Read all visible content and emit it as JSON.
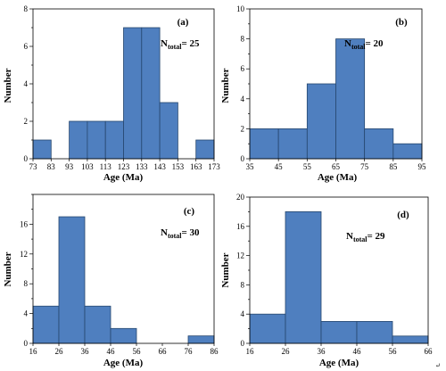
{
  "chart_data": [
    {
      "type": "bar",
      "panel_label": "(a)",
      "annotation": {
        "prefix": "N",
        "subscript": "total",
        "suffix": "= 25"
      },
      "xlabel": "Age (Ma)",
      "ylabel": "Number",
      "x_ticks": [
        73,
        83,
        93,
        103,
        113,
        123,
        133,
        143,
        153,
        163,
        173
      ],
      "bins": [
        {
          "from": 73,
          "to": 83,
          "value": 1
        },
        {
          "from": 83,
          "to": 93,
          "value": 0
        },
        {
          "from": 93,
          "to": 103,
          "value": 2
        },
        {
          "from": 103,
          "to": 113,
          "value": 2
        },
        {
          "from": 113,
          "to": 123,
          "value": 2
        },
        {
          "from": 123,
          "to": 133,
          "value": 7
        },
        {
          "from": 133,
          "to": 143,
          "value": 7
        },
        {
          "from": 143,
          "to": 153,
          "value": 3
        },
        {
          "from": 153,
          "to": 163,
          "value": 0
        },
        {
          "from": 163,
          "to": 173,
          "value": 1
        }
      ],
      "xlim": [
        73,
        173
      ],
      "ylim": [
        0,
        8
      ],
      "y_ticks": [
        0,
        2,
        4,
        6,
        8
      ],
      "y_minor_step": 1,
      "grid": false
    },
    {
      "type": "bar",
      "panel_label": "(b)",
      "annotation": {
        "prefix": "N",
        "subscript": "total",
        "suffix": "= 20"
      },
      "xlabel": "Age (Ma)",
      "ylabel": "Number",
      "x_ticks": [
        35,
        45,
        55,
        65,
        75,
        85,
        95
      ],
      "bins": [
        {
          "from": 35,
          "to": 45,
          "value": 2
        },
        {
          "from": 45,
          "to": 55,
          "value": 2
        },
        {
          "from": 55,
          "to": 65,
          "value": 5
        },
        {
          "from": 65,
          "to": 75,
          "value": 8
        },
        {
          "from": 75,
          "to": 85,
          "value": 2
        },
        {
          "from": 85,
          "to": 95,
          "value": 1
        }
      ],
      "xlim": [
        35,
        95
      ],
      "ylim": [
        0,
        10
      ],
      "y_ticks": [
        0,
        2,
        4,
        6,
        8,
        10
      ],
      "y_minor_step": 1,
      "grid": false
    },
    {
      "type": "bar",
      "panel_label": "(c)",
      "annotation": {
        "prefix": "N",
        "subscript": "total",
        "suffix": "= 30"
      },
      "xlabel": "Age (Ma)",
      "ylabel": "Number",
      "x_ticks": [
        16,
        26,
        36,
        46,
        56,
        66,
        76,
        86
      ],
      "bins": [
        {
          "from": 16,
          "to": 26,
          "value": 5
        },
        {
          "from": 26,
          "to": 36,
          "value": 17
        },
        {
          "from": 36,
          "to": 46,
          "value": 5
        },
        {
          "from": 46,
          "to": 56,
          "value": 2
        },
        {
          "from": 56,
          "to": 66,
          "value": 0
        },
        {
          "from": 66,
          "to": 76,
          "value": 0
        },
        {
          "from": 76,
          "to": 86,
          "value": 1
        }
      ],
      "xlim": [
        16,
        86
      ],
      "ylim": [
        0,
        20
      ],
      "y_ticks": [
        0,
        4,
        8,
        12,
        16
      ],
      "y_minor_step": 2,
      "grid": false
    },
    {
      "type": "bar",
      "panel_label": "(d)",
      "annotation": {
        "prefix": "N",
        "subscript": "total",
        "suffix": "= 29"
      },
      "xlabel": "Age (Ma)",
      "ylabel": "Number",
      "x_ticks": [
        16,
        26,
        36,
        46,
        56,
        66
      ],
      "bins": [
        {
          "from": 16,
          "to": 26,
          "value": 4
        },
        {
          "from": 26,
          "to": 36,
          "value": 18
        },
        {
          "from": 36,
          "to": 46,
          "value": 3
        },
        {
          "from": 46,
          "to": 56,
          "value": 3
        },
        {
          "from": 56,
          "to": 66,
          "value": 1
        }
      ],
      "xlim": [
        16,
        66
      ],
      "ylim": [
        0,
        20
      ],
      "y_ticks": [
        0,
        4,
        8,
        12,
        16,
        20
      ],
      "y_minor_step": 2,
      "grid": false
    }
  ],
  "colors": {
    "bar_fill": "#4f7fbf",
    "bar_edge": "#26476f",
    "axes": "#000000"
  },
  "corner_mark": "↵"
}
